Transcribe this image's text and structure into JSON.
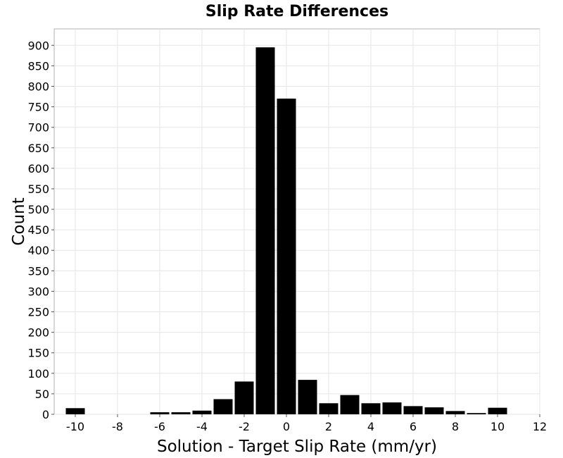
{
  "chart_data": {
    "type": "bar",
    "title": "Slip Rate Differences",
    "xlabel": "Solution - Target Slip Rate (mm/yr)",
    "ylabel": "Count",
    "xlim": [
      -11,
      12
    ],
    "ylim": [
      0,
      940
    ],
    "bin_width": 1,
    "x_ticks": [
      -10,
      -8,
      -6,
      -4,
      -2,
      0,
      2,
      4,
      6,
      8,
      10,
      12
    ],
    "y_ticks": [
      0,
      50,
      100,
      150,
      200,
      250,
      300,
      350,
      400,
      450,
      500,
      550,
      600,
      650,
      700,
      750,
      800,
      850,
      900
    ],
    "grid": true,
    "bar_color": "#000000",
    "bins": [
      {
        "x": -10,
        "count": 15
      },
      {
        "x": -6,
        "count": 5
      },
      {
        "x": -5,
        "count": 5
      },
      {
        "x": -4,
        "count": 9
      },
      {
        "x": -3,
        "count": 37
      },
      {
        "x": -2,
        "count": 80
      },
      {
        "x": -1,
        "count": 895
      },
      {
        "x": 0,
        "count": 770
      },
      {
        "x": 1,
        "count": 84
      },
      {
        "x": 2,
        "count": 27
      },
      {
        "x": 3,
        "count": 47
      },
      {
        "x": 4,
        "count": 27
      },
      {
        "x": 5,
        "count": 29
      },
      {
        "x": 6,
        "count": 20
      },
      {
        "x": 7,
        "count": 17
      },
      {
        "x": 8,
        "count": 8
      },
      {
        "x": 9,
        "count": 3
      },
      {
        "x": 10,
        "count": 16
      }
    ]
  }
}
